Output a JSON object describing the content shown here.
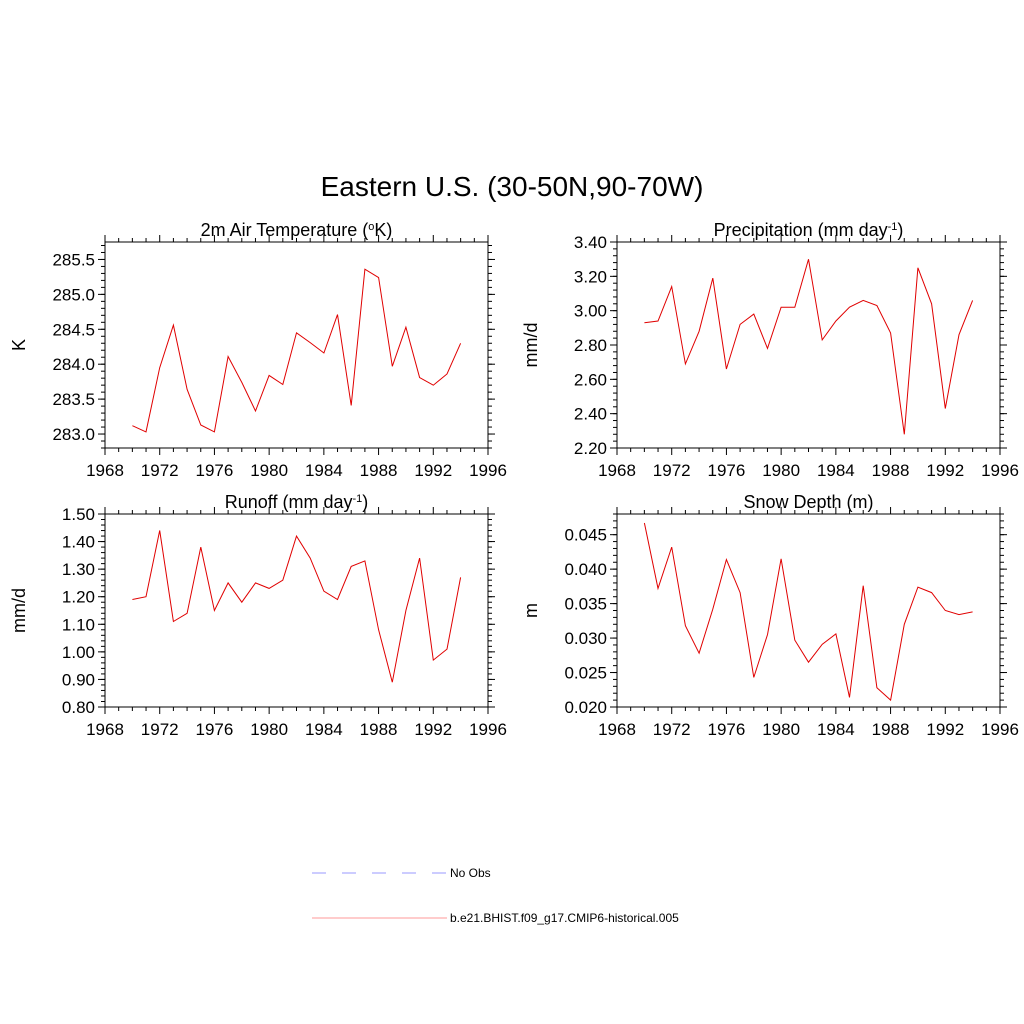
{
  "title": "Eastern U.S. (30-50N,90-70W)",
  "colors": {
    "model_line": "#e00000",
    "obs_line": "#9999ff",
    "axes": "#000000"
  },
  "legend": {
    "items": [
      {
        "label": "No Obs",
        "style": "dashed",
        "color": "#9999ff"
      },
      {
        "label": "b.e21.BHIST.f09_g17.CMIP6-historical.005",
        "style": "solid",
        "color": "#ff9999"
      }
    ]
  },
  "chart_data": [
    {
      "type": "line",
      "title": "2m Air Temperature (oK)",
      "title_parts": [
        {
          "text": "2m Air Temperature ("
        },
        {
          "text": "o",
          "sup": true
        },
        {
          "text": "K)"
        }
      ],
      "xlabel": "",
      "ylabel": "K",
      "xlim": [
        1968,
        1996
      ],
      "ylim": [
        282.8,
        285.75
      ],
      "xticks": [
        1968,
        1972,
        1976,
        1980,
        1984,
        1988,
        1992,
        1996
      ],
      "yticks": [
        "283.0",
        "283.5",
        "284.0",
        "284.5",
        "285.0",
        "285.5"
      ],
      "x": [
        1970,
        1971,
        1972,
        1973,
        1974,
        1975,
        1976,
        1977,
        1978,
        1979,
        1980,
        1981,
        1982,
        1983,
        1984,
        1985,
        1986,
        1987,
        1988,
        1989,
        1990,
        1991,
        1992,
        1993,
        1994
      ],
      "series": [
        {
          "values": [
            283.12,
            283.03,
            283.95,
            284.56,
            283.64,
            283.13,
            283.03,
            284.11,
            283.74,
            283.33,
            283.84,
            283.71,
            284.45,
            284.31,
            284.16,
            284.71,
            283.41,
            285.36,
            285.24,
            283.97,
            284.53,
            283.81,
            283.7,
            283.86,
            284.3
          ]
        }
      ]
    },
    {
      "type": "line",
      "title": "Precipitation (mm day-1)",
      "title_parts": [
        {
          "text": "Precipitation (mm day"
        },
        {
          "text": "-1",
          "sup": true
        },
        {
          "text": ")"
        }
      ],
      "xlabel": "",
      "ylabel": "mm/d",
      "xlim": [
        1968,
        1996
      ],
      "ylim": [
        2.2,
        3.4
      ],
      "xticks": [
        1968,
        1972,
        1976,
        1980,
        1984,
        1988,
        1992,
        1996
      ],
      "yticks": [
        "2.20",
        "2.40",
        "2.60",
        "2.80",
        "3.00",
        "3.20",
        "3.40"
      ],
      "x": [
        1970,
        1971,
        1972,
        1973,
        1974,
        1975,
        1976,
        1977,
        1978,
        1979,
        1980,
        1981,
        1982,
        1983,
        1984,
        1985,
        1986,
        1987,
        1988,
        1989,
        1990,
        1991,
        1992,
        1993,
        1994
      ],
      "series": [
        {
          "values": [
            2.93,
            2.94,
            3.14,
            2.69,
            2.88,
            3.19,
            2.66,
            2.92,
            2.98,
            2.78,
            3.02,
            3.02,
            3.3,
            2.83,
            2.94,
            3.02,
            3.06,
            3.03,
            2.87,
            2.28,
            3.25,
            3.04,
            2.43,
            2.86,
            3.06
          ]
        }
      ]
    },
    {
      "type": "line",
      "title": "Runoff (mm day-1)",
      "title_parts": [
        {
          "text": "Runoff (mm day"
        },
        {
          "text": "-1",
          "sup": true
        },
        {
          "text": ")"
        }
      ],
      "xlabel": "",
      "ylabel": "mm/d",
      "xlim": [
        1968,
        1996
      ],
      "ylim": [
        0.8,
        1.5
      ],
      "xticks": [
        1968,
        1972,
        1976,
        1980,
        1984,
        1988,
        1992,
        1996
      ],
      "yticks": [
        "0.80",
        "0.90",
        "1.00",
        "1.10",
        "1.20",
        "1.30",
        "1.40",
        "1.50"
      ],
      "x": [
        1970,
        1971,
        1972,
        1973,
        1974,
        1975,
        1976,
        1977,
        1978,
        1979,
        1980,
        1981,
        1982,
        1983,
        1984,
        1985,
        1986,
        1987,
        1988,
        1989,
        1990,
        1991,
        1992,
        1993,
        1994
      ],
      "series": [
        {
          "values": [
            1.19,
            1.2,
            1.44,
            1.11,
            1.14,
            1.38,
            1.15,
            1.25,
            1.18,
            1.25,
            1.23,
            1.26,
            1.42,
            1.34,
            1.22,
            1.19,
            1.31,
            1.33,
            1.08,
            0.89,
            1.15,
            1.34,
            0.97,
            1.01,
            1.27
          ]
        }
      ]
    },
    {
      "type": "line",
      "title": "Snow Depth (m)",
      "title_parts": [
        {
          "text": "Snow Depth (m)"
        }
      ],
      "xlabel": "",
      "ylabel": "m",
      "xlim": [
        1968,
        1996
      ],
      "ylim": [
        0.02,
        0.048
      ],
      "xticks": [
        1968,
        1972,
        1976,
        1980,
        1984,
        1988,
        1992,
        1996
      ],
      "yticks": [
        "0.020",
        "0.025",
        "0.030",
        "0.035",
        "0.040",
        "0.045"
      ],
      "x": [
        1970,
        1971,
        1972,
        1973,
        1974,
        1975,
        1976,
        1977,
        1978,
        1979,
        1980,
        1981,
        1982,
        1983,
        1984,
        1985,
        1986,
        1987,
        1988,
        1989,
        1990,
        1991,
        1992,
        1993,
        1994
      ],
      "series": [
        {
          "values": [
            0.0467,
            0.0372,
            0.0432,
            0.0318,
            0.0278,
            0.0342,
            0.0414,
            0.0366,
            0.0243,
            0.0305,
            0.0415,
            0.0297,
            0.0265,
            0.0291,
            0.0306,
            0.0214,
            0.0376,
            0.0228,
            0.021,
            0.032,
            0.0374,
            0.0366,
            0.034,
            0.0334,
            0.0338
          ]
        }
      ]
    }
  ]
}
